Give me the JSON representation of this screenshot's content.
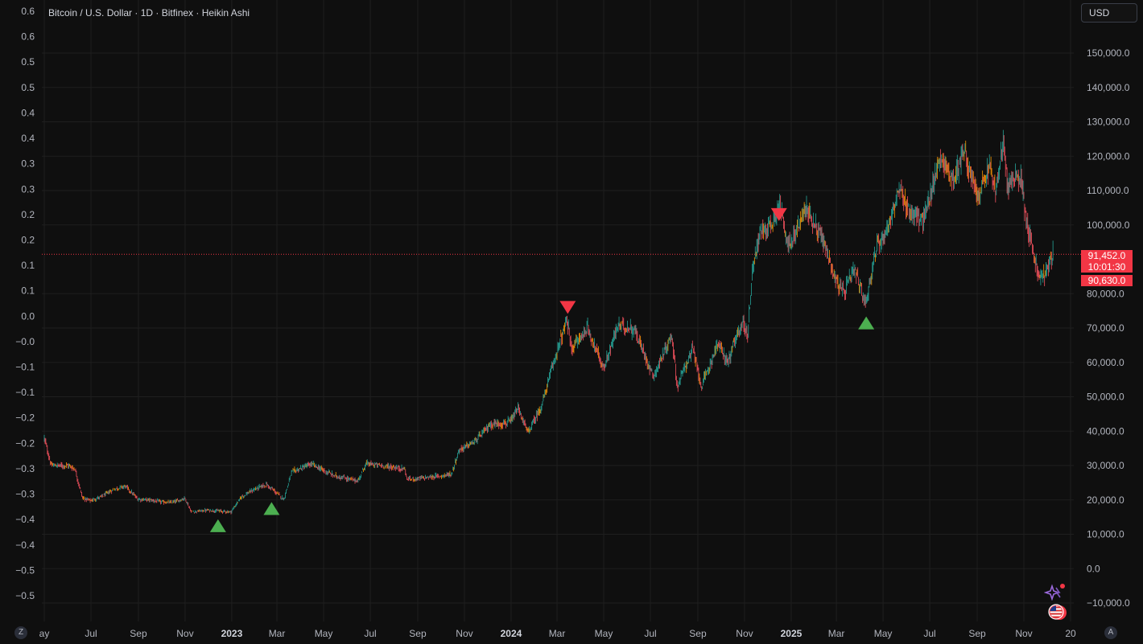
{
  "header": {
    "title": "Bitcoin / U.S. Dollar · 1D · Bitfinex · Heikin Ashi",
    "currency": "USD"
  },
  "price_tags": {
    "last_price": "91,452.0",
    "countdown": "10:01:30",
    "open_price": "90,630.0"
  },
  "corner_buttons": {
    "left": "Z",
    "right": "A"
  },
  "icons": {
    "assistant": "sparkle-icon",
    "region": "us-flag-icon"
  },
  "colors": {
    "background": "#0f0f0f",
    "grid": "#1f1f1f",
    "up_candle": "#26a69a",
    "down_candle": "#f7525f",
    "neutral_candle": "#ff9800",
    "buy_signal": "#4caf50",
    "sell_signal": "#f23645",
    "price_line": "#f23645",
    "axis_text": "#b2b5be"
  },
  "chart_data": {
    "type": "candlestick",
    "style": "Heikin Ashi",
    "symbol": "Bitcoin / U.S. Dollar",
    "interval": "1D",
    "exchange": "Bitfinex",
    "grid": true,
    "x_ticks": [
      {
        "label": "ay",
        "date": "2022-05-01"
      },
      {
        "label": "Jul",
        "date": "2022-07-01"
      },
      {
        "label": "Sep",
        "date": "2022-09-01"
      },
      {
        "label": "Nov",
        "date": "2022-11-01"
      },
      {
        "label": "2023",
        "date": "2023-01-01",
        "bold": true
      },
      {
        "label": "Mar",
        "date": "2023-03-01"
      },
      {
        "label": "May",
        "date": "2023-05-01"
      },
      {
        "label": "Jul",
        "date": "2023-07-01"
      },
      {
        "label": "Sep",
        "date": "2023-09-01"
      },
      {
        "label": "Nov",
        "date": "2023-11-01"
      },
      {
        "label": "2024",
        "date": "2024-01-01",
        "bold": true
      },
      {
        "label": "Mar",
        "date": "2024-03-01"
      },
      {
        "label": "May",
        "date": "2024-05-01"
      },
      {
        "label": "Jul",
        "date": "2024-07-01"
      },
      {
        "label": "Sep",
        "date": "2024-09-01"
      },
      {
        "label": "Nov",
        "date": "2024-11-01"
      },
      {
        "label": "2025",
        "date": "2025-01-01",
        "bold": true
      },
      {
        "label": "Mar",
        "date": "2025-03-01"
      },
      {
        "label": "May",
        "date": "2025-05-01"
      },
      {
        "label": "Jul",
        "date": "2025-07-01"
      },
      {
        "label": "Sep",
        "date": "2025-09-01"
      },
      {
        "label": "Nov",
        "date": "2025-11-01"
      },
      {
        "label": "20",
        "date": "2026-01-01"
      }
    ],
    "right_axis": {
      "ylim": [
        -14000,
        166000
      ],
      "ticks": [
        {
          "label": "150,000.0",
          "value": 150000
        },
        {
          "label": "140,000.0",
          "value": 140000
        },
        {
          "label": "130,000.0",
          "value": 130000
        },
        {
          "label": "120,000.0",
          "value": 120000
        },
        {
          "label": "110,000.0",
          "value": 110000
        },
        {
          "label": "100,000.0",
          "value": 100000
        },
        {
          "label": "80,000.0",
          "value": 80000
        },
        {
          "label": "70,000.0",
          "value": 70000
        },
        {
          "label": "60,000.0",
          "value": 60000
        },
        {
          "label": "50,000.0",
          "value": 50000
        },
        {
          "label": "40,000.0",
          "value": 40000
        },
        {
          "label": "30,000.0",
          "value": 30000
        },
        {
          "label": "20,000.0",
          "value": 20000
        },
        {
          "label": "10,000.0",
          "value": 10000
        },
        {
          "label": "0.0",
          "value": 0
        },
        {
          "label": "−10,000.0",
          "value": -10000
        }
      ]
    },
    "left_axis": {
      "ylim": [
        -0.51,
        0.65
      ],
      "ticks": [
        {
          "label": "0.6",
          "value": 0.6
        },
        {
          "label": "0.6",
          "value": 0.55
        },
        {
          "label": "0.5",
          "value": 0.5
        },
        {
          "label": "0.5",
          "value": 0.45
        },
        {
          "label": "0.4",
          "value": 0.4
        },
        {
          "label": "0.4",
          "value": 0.35
        },
        {
          "label": "0.3",
          "value": 0.3
        },
        {
          "label": "0.3",
          "value": 0.25
        },
        {
          "label": "0.2",
          "value": 0.2
        },
        {
          "label": "0.2",
          "value": 0.15
        },
        {
          "label": "0.1",
          "value": 0.1
        },
        {
          "label": "0.1",
          "value": 0.05
        },
        {
          "label": "0.0",
          "value": 0.0
        },
        {
          "label": "−0.0",
          "value": -0.05
        },
        {
          "label": "−0.1",
          "value": -0.1
        },
        {
          "label": "−0.1",
          "value": -0.15
        },
        {
          "label": "−0.2",
          "value": -0.2
        },
        {
          "label": "−0.2",
          "value": -0.25
        },
        {
          "label": "−0.3",
          "value": -0.3
        },
        {
          "label": "−0.3",
          "value": -0.35
        },
        {
          "label": "−0.4",
          "value": -0.4
        },
        {
          "label": "−0.4",
          "value": -0.45
        },
        {
          "label": "−0.5",
          "value": -0.5
        },
        {
          "label": "−0.5",
          "value": -0.55
        }
      ]
    },
    "price_path": [
      [
        "2022-05-01",
        38000
      ],
      [
        "2022-05-10",
        30000
      ],
      [
        "2022-06-01",
        30000
      ],
      [
        "2022-06-10",
        29000
      ],
      [
        "2022-06-20",
        20500
      ],
      [
        "2022-07-01",
        19800
      ],
      [
        "2022-07-15",
        21000
      ],
      [
        "2022-08-01",
        23200
      ],
      [
        "2022-08-15",
        24000
      ],
      [
        "2022-08-31",
        20200
      ],
      [
        "2022-09-15",
        20000
      ],
      [
        "2022-10-01",
        19400
      ],
      [
        "2022-10-15",
        19200
      ],
      [
        "2022-11-01",
        20500
      ],
      [
        "2022-11-09",
        16500
      ],
      [
        "2022-12-01",
        17000
      ],
      [
        "2022-12-31",
        16500
      ],
      [
        "2023-01-14",
        21000
      ],
      [
        "2023-02-01",
        23200
      ],
      [
        "2023-02-15",
        24500
      ],
      [
        "2023-03-10",
        20200
      ],
      [
        "2023-03-20",
        28000
      ],
      [
        "2023-04-15",
        30400
      ],
      [
        "2023-05-15",
        27000
      ],
      [
        "2023-06-15",
        25500
      ],
      [
        "2023-06-25",
        30500
      ],
      [
        "2023-07-15",
        30000
      ],
      [
        "2023-08-15",
        29000
      ],
      [
        "2023-08-18",
        26000
      ],
      [
        "2023-09-15",
        26500
      ],
      [
        "2023-10-15",
        27500
      ],
      [
        "2023-10-25",
        34500
      ],
      [
        "2023-11-15",
        37000
      ],
      [
        "2023-12-05",
        42000
      ],
      [
        "2023-12-31",
        42500
      ],
      [
        "2024-01-10",
        46500
      ],
      [
        "2024-01-23",
        39500
      ],
      [
        "2024-02-10",
        47500
      ],
      [
        "2024-02-28",
        62000
      ],
      [
        "2024-03-14",
        72000
      ],
      [
        "2024-03-20",
        64000
      ],
      [
        "2024-04-10",
        70000
      ],
      [
        "2024-05-01",
        58000
      ],
      [
        "2024-05-20",
        71000
      ],
      [
        "2024-06-10",
        69500
      ],
      [
        "2024-07-05",
        56000
      ],
      [
        "2024-07-29",
        68000
      ],
      [
        "2024-08-05",
        53000
      ],
      [
        "2024-08-25",
        64000
      ],
      [
        "2024-09-06",
        53000
      ],
      [
        "2024-09-27",
        65500
      ],
      [
        "2024-10-10",
        60000
      ],
      [
        "2024-10-29",
        72000
      ],
      [
        "2024-11-05",
        68000
      ],
      [
        "2024-11-12",
        89000
      ],
      [
        "2024-11-22",
        98000
      ],
      [
        "2024-12-05",
        100000
      ],
      [
        "2024-12-17",
        106000
      ],
      [
        "2024-12-30",
        93000
      ],
      [
        "2025-01-20",
        105000
      ],
      [
        "2025-02-10",
        96500
      ],
      [
        "2025-02-28",
        84000
      ],
      [
        "2025-03-10",
        80000
      ],
      [
        "2025-03-25",
        87000
      ],
      [
        "2025-04-08",
        77000
      ],
      [
        "2025-04-22",
        93000
      ],
      [
        "2025-05-08",
        100000
      ],
      [
        "2025-05-22",
        110000
      ],
      [
        "2025-06-05",
        104000
      ],
      [
        "2025-06-22",
        101000
      ],
      [
        "2025-07-03",
        109000
      ],
      [
        "2025-07-14",
        120000
      ],
      [
        "2025-08-02",
        113000
      ],
      [
        "2025-08-14",
        122000
      ],
      [
        "2025-09-01",
        108000
      ],
      [
        "2025-09-18",
        117000
      ],
      [
        "2025-09-25",
        109000
      ],
      [
        "2025-10-06",
        124500
      ],
      [
        "2025-10-10",
        112000
      ],
      [
        "2025-10-28",
        114000
      ],
      [
        "2025-11-05",
        101000
      ],
      [
        "2025-11-21",
        84000
      ],
      [
        "2025-12-02",
        87000
      ],
      [
        "2025-12-09",
        91452
      ]
    ],
    "signals": [
      {
        "type": "buy",
        "date": "2022-12-14",
        "price": 12500
      },
      {
        "type": "buy",
        "date": "2023-02-22",
        "price": 17500
      },
      {
        "type": "sell",
        "date": "2024-03-15",
        "price": 76000
      },
      {
        "type": "sell",
        "date": "2024-12-16",
        "price": 103000
      },
      {
        "type": "buy",
        "date": "2025-04-09",
        "price": 71500
      }
    ],
    "last_price": 91452.0,
    "open_price": 90630.0
  }
}
